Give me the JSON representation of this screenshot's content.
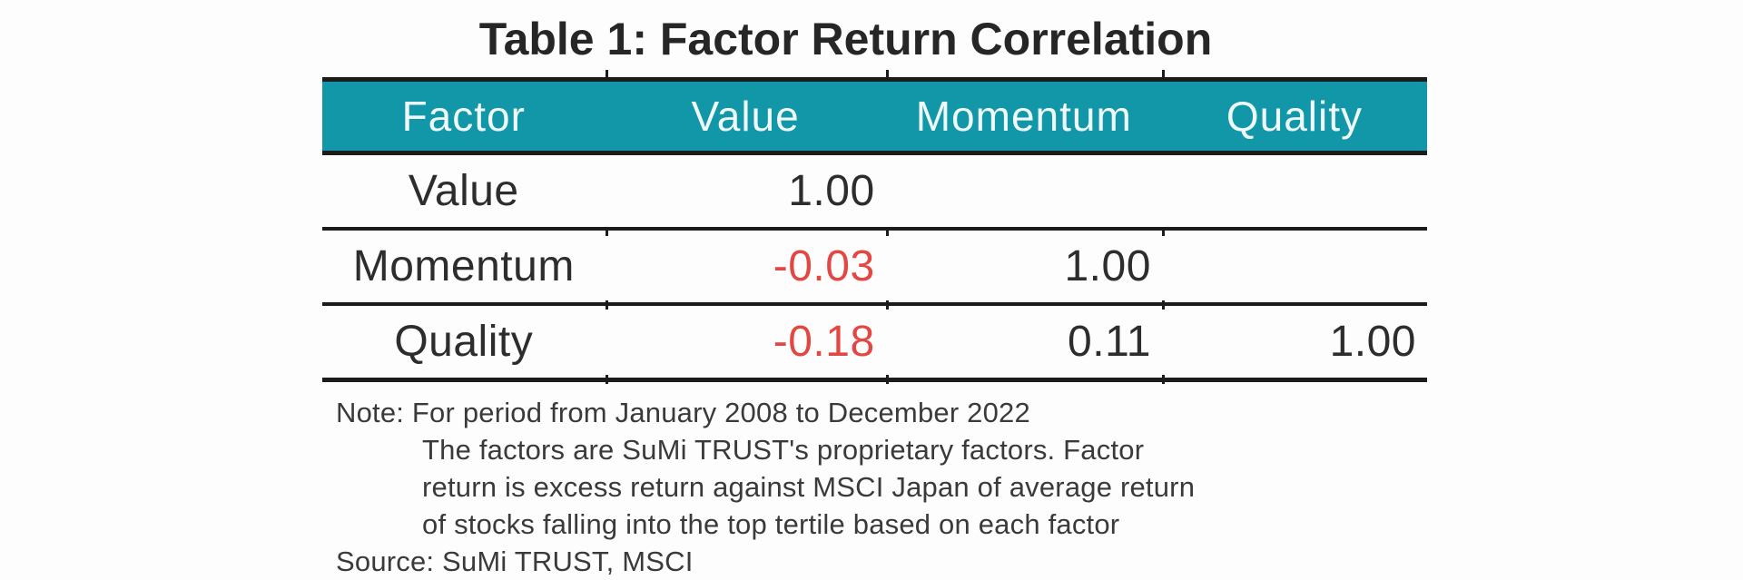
{
  "title": "Table 1: Factor Return Correlation",
  "table": {
    "header": [
      "Factor",
      "Value",
      "Momentum",
      "Quality"
    ],
    "rows": [
      {
        "cells": [
          "Value",
          "1.00",
          "",
          ""
        ]
      },
      {
        "cells": [
          "Momentum",
          "-0.03",
          "1.00",
          ""
        ]
      },
      {
        "cells": [
          "Quality",
          "-0.18",
          "0.11",
          "1.00"
        ]
      }
    ]
  },
  "notes": [
    "Note: For period from January 2008 to December 2022",
    "The factors are SuMi TRUST's proprietary factors. Factor",
    "return is excess return against MSCI Japan of average return",
    "of stocks falling into the top tertile based on each factor",
    "Source: SuMi TRUST, MSCI"
  ],
  "colors": {
    "header_bg": "#1297A9",
    "header_text": "#EFF9FA",
    "negative_value": "#E24743",
    "rule": "#1C1C1C",
    "title_text": "#262626"
  },
  "chart_data": {
    "type": "table",
    "title": "Table 1: Factor Return Correlation",
    "columns": [
      "Factor",
      "Value",
      "Momentum",
      "Quality"
    ],
    "rows": [
      [
        "Value",
        1.0,
        null,
        null
      ],
      [
        "Momentum",
        -0.03,
        1.0,
        null
      ],
      [
        "Quality",
        -0.18,
        0.11,
        1.0
      ]
    ],
    "negative_values_shown_in_red": [
      -0.03,
      -0.18
    ],
    "note_lines": [
      "Note: For period from January 2008 to December 2022",
      "The factors are SuMi TRUST's proprietary factors. Factor",
      "return is excess return against MSCI Japan of average return",
      "of stocks falling into the top tertile based on each factor"
    ],
    "source": "Source: SuMi TRUST, MSCI",
    "layout": "lower-triangular correlation matrix, teal header row, thick black horizontal rules"
  }
}
